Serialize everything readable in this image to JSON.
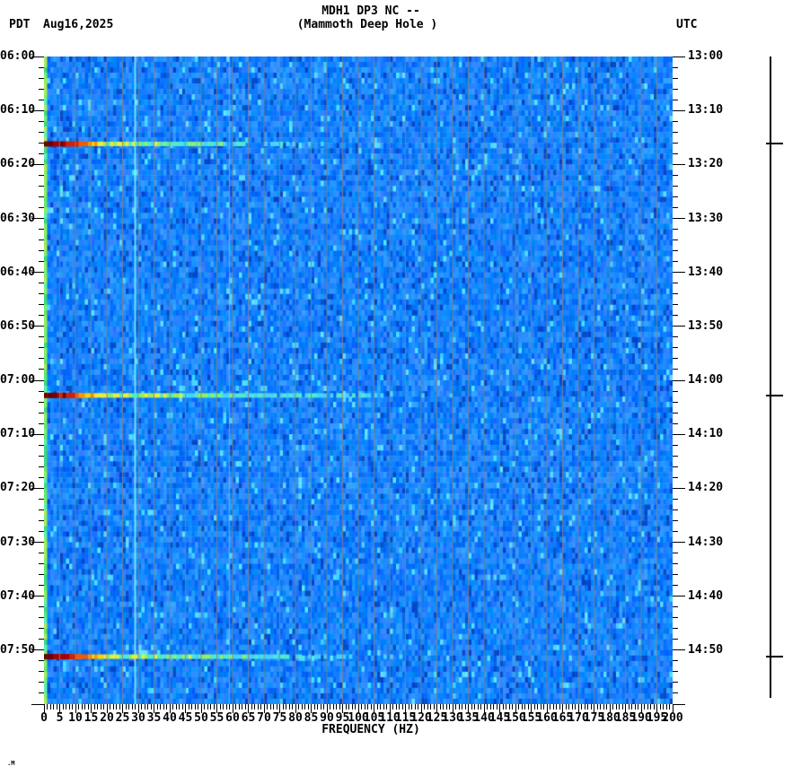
{
  "header": {
    "tz_left": "PDT",
    "date": "Aug16,2025",
    "title_line1": "MDH1 DP3 NC --",
    "title_line2": "(Mammoth Deep Hole )",
    "tz_right": "UTC"
  },
  "left_axis": {
    "timezone": "PDT",
    "labels": [
      "06:00",
      "06:10",
      "06:20",
      "06:30",
      "06:40",
      "06:50",
      "07:00",
      "07:10",
      "07:20",
      "07:30",
      "07:40",
      "07:50"
    ],
    "label_step_min": 10,
    "minor_tick_step_min": 2,
    "start": "06:00",
    "end": "08:00"
  },
  "right_axis": {
    "timezone": "UTC",
    "labels": [
      "13:00",
      "13:10",
      "13:20",
      "13:30",
      "13:40",
      "13:50",
      "14:00",
      "14:10",
      "14:20",
      "14:30",
      "14:40",
      "14:50"
    ],
    "label_step_min": 10,
    "minor_tick_step_min": 2,
    "start": "13:00",
    "end": "15:00"
  },
  "x_axis": {
    "label": "FREQUENCY (HZ)",
    "min_hz": 0,
    "max_hz": 200,
    "label_step_hz": 5,
    "minor_tick_step_hz": 1,
    "tick_labels": [
      "0",
      "5",
      "10",
      "15",
      "20",
      "25",
      "30",
      "35",
      "40",
      "45",
      "50",
      "55",
      "60",
      "65",
      "70",
      "75",
      "80",
      "85",
      "90",
      "95",
      "100",
      "105",
      "110",
      "115",
      "120",
      "125",
      "130",
      "135",
      "140",
      "145",
      "150",
      "155",
      "160",
      "165",
      "170",
      "175",
      "180",
      "185",
      "190",
      "195",
      "200"
    ]
  },
  "watermark": ".M",
  "chart_data": {
    "type": "heatmap",
    "title": "MDH1 DP3 NC -- (Mammoth Deep Hole )",
    "xlabel": "FREQUENCY (HZ)",
    "x_range_hz": [
      0,
      200
    ],
    "time_range_pdt": [
      "06:00",
      "08:00"
    ],
    "time_range_utc": [
      "13:00",
      "15:00"
    ],
    "date": "Aug16,2025",
    "grid": "vertical gray lines every 5 Hz",
    "background": "random blue spectral noise, green band at 0-1 Hz",
    "persistent_lines_hz": [
      29,
      59
    ],
    "events": [
      {
        "time_pdt": "06:16",
        "time_utc": "13:16",
        "minutes_after_start": 16.2,
        "peak_freq_hz": 0,
        "visible_extent_hz": 74,
        "intensity": "strong"
      },
      {
        "time_pdt": "07:03",
        "time_utc": "14:03",
        "minutes_after_start": 62.8,
        "peak_freq_hz": 0,
        "visible_extent_hz": 100,
        "intensity": "strong"
      },
      {
        "time_pdt": "07:51",
        "time_utc": "14:51",
        "minutes_after_start": 111.2,
        "peak_freq_hz": 0,
        "visible_extent_hz": 88,
        "intensity": "strongest"
      }
    ],
    "right_bar_tick_times_pdt": [
      "06:16",
      "07:03",
      "07:51"
    ],
    "colors": {
      "background_low": "#0a50e0",
      "background_high": "#00c8ff",
      "low_freq_band": "#7df06e",
      "event_peak": "#700000",
      "event_mid": "#ffd200",
      "event_tail": "#48d2ff",
      "gridline": "#82848a",
      "line_29hz": "#82ffff",
      "text": "#000000"
    }
  }
}
